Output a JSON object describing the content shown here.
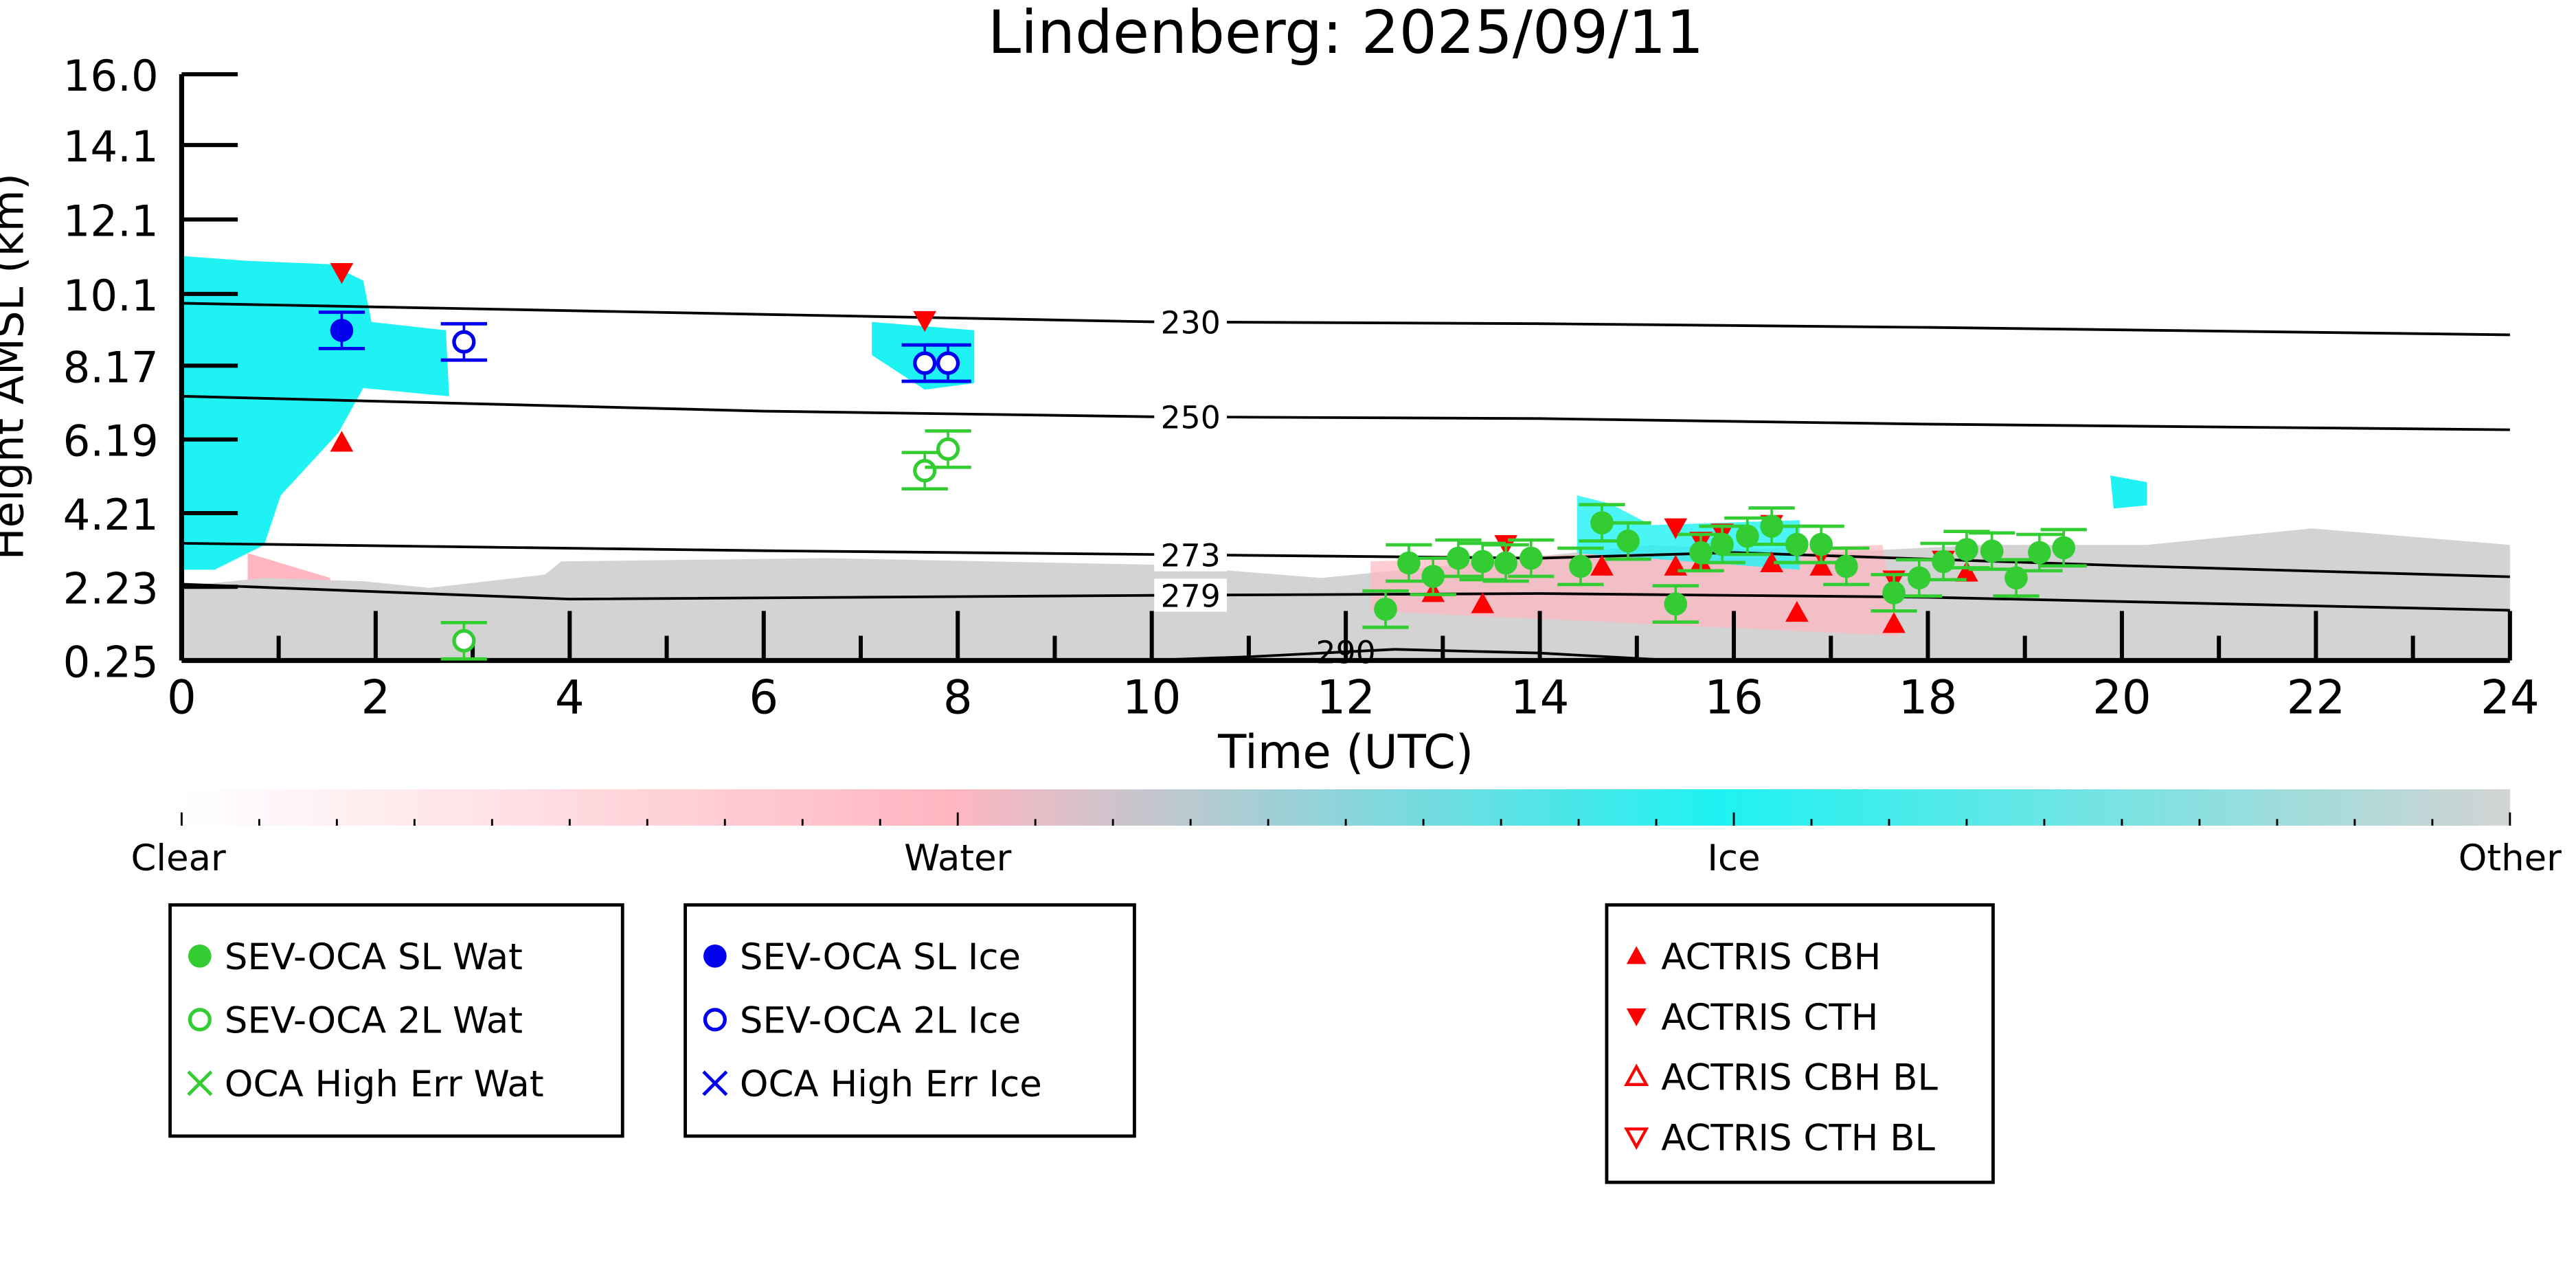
{
  "chart_data": {
    "type": "scatter",
    "title": "Lindenberg: 2025/09/11",
    "xlabel": "Time (UTC)",
    "ylabel": "Height AMSL (km)",
    "xlim": [
      0,
      24
    ],
    "ylim": [
      0.25,
      16.0
    ],
    "xticks": [
      "0",
      "2",
      "4",
      "6",
      "8",
      "10",
      "12",
      "14",
      "16",
      "18",
      "20",
      "22",
      "24"
    ],
    "yticks": [
      "0.25",
      "2.23",
      "4.21",
      "6.19",
      "8.17",
      "10.1",
      "12.1",
      "14.1",
      "16.0"
    ],
    "ytick_values": [
      0.25,
      2.23,
      4.21,
      6.19,
      8.17,
      10.1,
      12.1,
      14.1,
      16.0
    ],
    "temperature_contours": [
      {
        "label": "230",
        "x": [
          0,
          6,
          10,
          14,
          18,
          24
        ],
        "y": [
          9.85,
          9.55,
          9.35,
          9.3,
          9.2,
          9.0
        ]
      },
      {
        "label": "250",
        "x": [
          0,
          6,
          10,
          14,
          18,
          24
        ],
        "y": [
          7.35,
          6.95,
          6.8,
          6.75,
          6.6,
          6.45
        ]
      },
      {
        "label": "273",
        "x": [
          0,
          6,
          10,
          14,
          16,
          20,
          24
        ],
        "y": [
          3.4,
          3.2,
          3.1,
          3.0,
          3.15,
          2.8,
          2.5
        ]
      },
      {
        "label": "279",
        "x": [
          0,
          4,
          10,
          14,
          18,
          24
        ],
        "y": [
          2.3,
          1.9,
          2.0,
          2.05,
          1.95,
          1.6
        ]
      },
      {
        "label": "290",
        "x": [
          9.9,
          11,
          12.5,
          14,
          15.4
        ],
        "y": [
          0.25,
          0.35,
          0.55,
          0.45,
          0.25
        ]
      }
    ],
    "colorbar": {
      "labels": [
        "Clear",
        "Water",
        "Ice",
        "Other"
      ],
      "colors": [
        "#ffffff",
        "#ffb6c1",
        "#1ef2f2",
        "#d3d3d3"
      ]
    },
    "series": [
      {
        "name": "SEV-OCA SL Wat",
        "color": "#33cc33",
        "marker": "filled-circle",
        "x": [
          12.41,
          12.65,
          12.9,
          13.16,
          13.41,
          13.65,
          13.91,
          14.42,
          14.64,
          14.91,
          15.4,
          15.66,
          15.88,
          16.14,
          16.39,
          16.65,
          16.9,
          17.16,
          17.65,
          17.91,
          18.16,
          18.4,
          18.66,
          18.91,
          19.15,
          19.4
        ],
        "y": [
          1.63,
          2.87,
          2.51,
          3.0,
          2.91,
          2.87,
          3.0,
          2.78,
          3.95,
          3.46,
          1.77,
          3.15,
          3.37,
          3.59,
          3.86,
          3.37,
          3.37,
          2.78,
          2.07,
          2.47,
          2.91,
          3.23,
          3.19,
          2.47,
          3.15,
          3.28
        ]
      },
      {
        "name": "SEV-OCA 2L Wat",
        "color": "#33cc33",
        "marker": "open-circle",
        "x": [
          2.91,
          7.66,
          7.9
        ],
        "y": [
          0.78,
          5.35,
          5.93
        ]
      },
      {
        "name": "OCA High Err Wat",
        "color": "#33cc33",
        "marker": "x",
        "x": [],
        "y": []
      },
      {
        "name": "SEV-OCA SL Ice",
        "color": "#0000ee",
        "marker": "filled-circle",
        "x": [
          1.65
        ],
        "y": [
          9.12
        ]
      },
      {
        "name": "SEV-OCA 2L Ice",
        "color": "#0000ee",
        "marker": "open-circle",
        "x": [
          2.91,
          7.66,
          7.9
        ],
        "y": [
          8.81,
          8.24,
          8.24
        ]
      },
      {
        "name": "OCA High Err Ice",
        "color": "#0000ee",
        "marker": "x",
        "x": [],
        "y": []
      },
      {
        "name": "ACTRIS CBH",
        "color": "#ff0000",
        "marker": "triangle-up",
        "x": [
          1.65,
          12.9,
          13.41,
          14.64,
          15.4,
          15.66,
          16.39,
          16.65,
          16.9,
          17.65,
          18.4
        ],
        "y": [
          6.11,
          2.07,
          1.77,
          2.78,
          2.78,
          2.87,
          2.87,
          1.54,
          2.78,
          1.24,
          2.62
        ]
      },
      {
        "name": "ACTRIS CTH",
        "color": "#ff0000",
        "marker": "triangle-down",
        "x": [
          1.65,
          7.66,
          13.65,
          15.4,
          15.66,
          15.88,
          16.39,
          16.9,
          17.65,
          18.16
        ],
        "y": [
          10.68,
          9.39,
          3.37,
          3.82,
          3.46,
          3.68,
          3.91,
          3.1,
          2.42,
          2.95
        ]
      },
      {
        "name": "ACTRIS CBH BL",
        "color": "#ff0000",
        "marker": "open-triangle-up",
        "x": [],
        "y": []
      },
      {
        "name": "ACTRIS CTH BL",
        "color": "#ff0000",
        "marker": "open-triangle-down",
        "x": [],
        "y": []
      }
    ],
    "legend_groups": [
      [
        0,
        1,
        2
      ],
      [
        3,
        4,
        5
      ],
      [
        6,
        7,
        8,
        9
      ]
    ]
  }
}
